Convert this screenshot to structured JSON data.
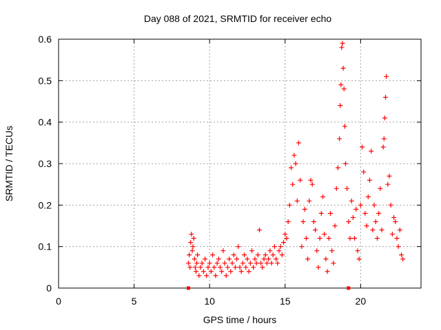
{
  "chart_data": {
    "type": "scatter",
    "title": "Day 088 of 2021, SRMTID for receiver echo",
    "xlabel": "GPS time / hours",
    "ylabel": "SRMTID / TECUs",
    "xlim": [
      0,
      24
    ],
    "ylim": [
      0,
      0.6
    ],
    "xticks": [
      0,
      5,
      10,
      15,
      20
    ],
    "xtick_labels": [
      "0",
      "5",
      "10",
      "15",
      "20"
    ],
    "yticks": [
      0,
      0.1,
      0.2,
      0.3,
      0.4,
      0.5,
      0.6
    ],
    "ytick_labels": [
      "0",
      "0.1",
      "0.2",
      "0.3",
      "0.4",
      "0.5",
      "0.6"
    ],
    "grid": true,
    "marker": "+",
    "color": "#ff0000",
    "series": [
      {
        "name": "SRMTID",
        "x": [
          8.6,
          8.65,
          8.7,
          8.75,
          8.8,
          8.85,
          8.9,
          8.95,
          9.0,
          9.05,
          9.1,
          9.15,
          9.2,
          9.3,
          9.4,
          9.5,
          9.6,
          9.7,
          9.8,
          9.9,
          10.0,
          10.1,
          10.2,
          10.3,
          10.4,
          10.5,
          10.6,
          10.7,
          10.8,
          10.9,
          11.0,
          11.1,
          11.2,
          11.3,
          11.4,
          11.5,
          11.6,
          11.7,
          11.8,
          11.9,
          12.0,
          12.1,
          12.2,
          12.3,
          12.4,
          12.5,
          12.6,
          12.7,
          12.8,
          12.9,
          13.0,
          13.1,
          13.2,
          13.3,
          13.4,
          13.5,
          13.6,
          13.7,
          13.8,
          13.9,
          14.0,
          14.1,
          14.2,
          14.3,
          14.4,
          14.5,
          14.6,
          14.7,
          14.8,
          14.9,
          15.0,
          15.1,
          15.2,
          15.3,
          15.4,
          15.5,
          15.6,
          15.7,
          15.8,
          15.9,
          16.0,
          16.1,
          16.2,
          16.3,
          16.4,
          16.5,
          16.6,
          16.7,
          16.8,
          16.9,
          17.0,
          17.1,
          17.2,
          17.3,
          17.4,
          17.5,
          17.6,
          17.7,
          17.8,
          17.9,
          18.0,
          18.1,
          18.2,
          18.3,
          18.4,
          18.5,
          18.6,
          18.65,
          18.7,
          18.75,
          18.8,
          18.85,
          18.9,
          18.95,
          19.0,
          19.1,
          19.2,
          19.3,
          19.4,
          19.5,
          19.6,
          19.7,
          19.8,
          19.9,
          20.0,
          20.1,
          20.2,
          20.3,
          20.4,
          20.5,
          20.6,
          20.7,
          20.8,
          20.9,
          21.0,
          21.1,
          21.2,
          21.3,
          21.4,
          21.5,
          21.55,
          21.6,
          21.65,
          21.7,
          21.8,
          21.9,
          22.0,
          22.1,
          22.2,
          22.3,
          22.4,
          22.5,
          22.6,
          22.7,
          22.8
        ],
        "y": [
          0.06,
          0.08,
          0.05,
          0.11,
          0.13,
          0.09,
          0.1,
          0.12,
          0.07,
          0.05,
          0.04,
          0.06,
          0.08,
          0.03,
          0.05,
          0.06,
          0.04,
          0.07,
          0.03,
          0.05,
          0.06,
          0.04,
          0.08,
          0.05,
          0.03,
          0.06,
          0.07,
          0.05,
          0.04,
          0.09,
          0.06,
          0.03,
          0.05,
          0.07,
          0.04,
          0.06,
          0.08,
          0.05,
          0.07,
          0.1,
          0.05,
          0.04,
          0.06,
          0.08,
          0.05,
          0.07,
          0.04,
          0.06,
          0.09,
          0.05,
          0.07,
          0.06,
          0.08,
          0.14,
          0.06,
          0.05,
          0.07,
          0.08,
          0.06,
          0.07,
          0.09,
          0.06,
          0.08,
          0.1,
          0.07,
          0.06,
          0.09,
          0.1,
          0.08,
          0.11,
          0.13,
          0.12,
          0.16,
          0.2,
          0.29,
          0.25,
          0.32,
          0.3,
          0.21,
          0.35,
          0.26,
          0.1,
          0.16,
          0.19,
          0.12,
          0.07,
          0.21,
          0.26,
          0.25,
          0.16,
          0.14,
          0.09,
          0.05,
          0.12,
          0.18,
          0.22,
          0.13,
          0.07,
          0.04,
          0.12,
          0.18,
          0.09,
          0.06,
          0.15,
          0.24,
          0.29,
          0.36,
          0.44,
          0.49,
          0.58,
          0.59,
          0.53,
          0.48,
          0.39,
          0.3,
          0.24,
          0.16,
          0.12,
          0.21,
          0.17,
          0.12,
          0.19,
          0.09,
          0.07,
          0.2,
          0.34,
          0.28,
          0.18,
          0.15,
          0.22,
          0.26,
          0.33,
          0.14,
          0.2,
          0.16,
          0.12,
          0.18,
          0.24,
          0.14,
          0.34,
          0.36,
          0.41,
          0.46,
          0.51,
          0.25,
          0.27,
          0.2,
          0.13,
          0.17,
          0.16,
          0.12,
          0.1,
          0.14,
          0.08,
          0.07
        ]
      }
    ],
    "markers_on_axis": [
      {
        "x": 8.6,
        "y": 0
      },
      {
        "x": 19.2,
        "y": 0
      }
    ]
  }
}
